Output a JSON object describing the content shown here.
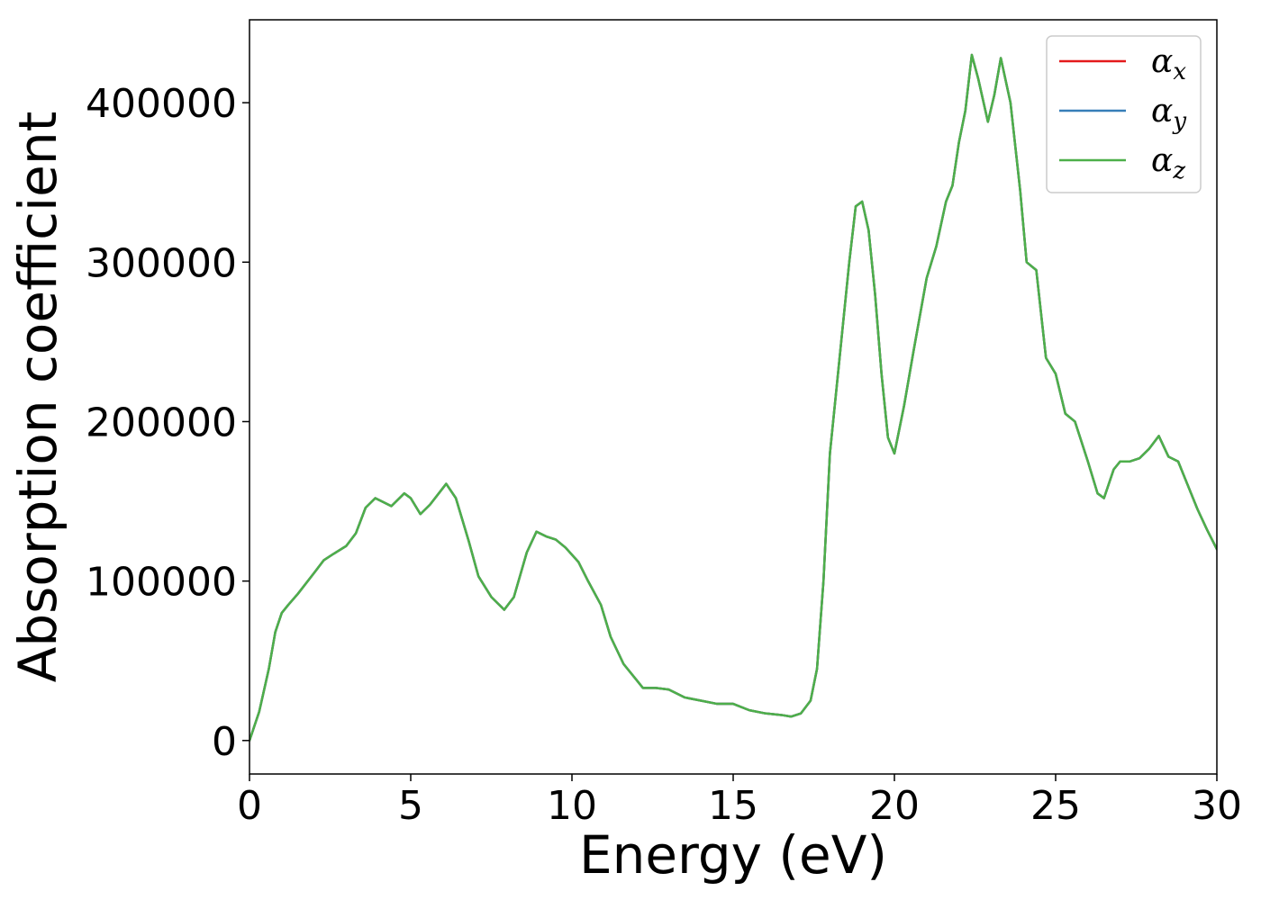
{
  "chart_data": {
    "type": "line",
    "xlabel": "Energy (eV)",
    "ylabel": "Absorption coefficient",
    "xlim": [
      0,
      30
    ],
    "ylim": [
      -21000,
      452000
    ],
    "xticks": [
      0,
      5,
      10,
      15,
      20,
      25,
      30
    ],
    "yticks": [
      0,
      100000,
      200000,
      300000,
      400000
    ],
    "grid": false,
    "legend_position": "top-right",
    "x": [
      0,
      0.3,
      0.6,
      0.8,
      1.0,
      1.2,
      1.5,
      2.0,
      2.3,
      2.6,
      3.0,
      3.3,
      3.6,
      3.9,
      4.1,
      4.4,
      4.8,
      5.0,
      5.3,
      5.6,
      6.1,
      6.4,
      6.8,
      7.1,
      7.5,
      7.9,
      8.2,
      8.6,
      8.9,
      9.2,
      9.5,
      9.8,
      10.2,
      10.5,
      10.9,
      11.2,
      11.6,
      12.0,
      12.2,
      12.6,
      13.0,
      13.5,
      14.0,
      14.5,
      15.0,
      15.5,
      16.0,
      16.5,
      16.8,
      17.1,
      17.4,
      17.6,
      17.8,
      18.0,
      18.3,
      18.6,
      18.8,
      19.0,
      19.2,
      19.4,
      19.6,
      19.8,
      20.0,
      20.3,
      20.6,
      21.0,
      21.3,
      21.6,
      21.8,
      22.0,
      22.2,
      22.4,
      22.6,
      22.9,
      23.1,
      23.3,
      23.6,
      23.9,
      24.1,
      24.4,
      24.7,
      25.0,
      25.3,
      25.6,
      26.0,
      26.3,
      26.5,
      26.8,
      27.0,
      27.3,
      27.6,
      27.9,
      28.2,
      28.5,
      28.8,
      29.1,
      29.4,
      29.7,
      30.0
    ],
    "series": [
      {
        "name": "α_x",
        "color": "#e41a1c",
        "values": [
          0,
          18000,
          45000,
          68000,
          80000,
          85000,
          92000,
          105000,
          113000,
          117000,
          122000,
          130000,
          146000,
          152000,
          150000,
          147000,
          155000,
          152000,
          142000,
          148000,
          161000,
          152000,
          125000,
          103000,
          90000,
          82000,
          90000,
          118000,
          131000,
          128000,
          126000,
          121000,
          112000,
          100000,
          85000,
          65000,
          48000,
          38000,
          33000,
          33000,
          32000,
          27000,
          25000,
          23000,
          23000,
          19000,
          17000,
          16000,
          15000,
          17000,
          25000,
          45000,
          100000,
          180000,
          240000,
          300000,
          335000,
          338000,
          320000,
          280000,
          230000,
          190000,
          180000,
          210000,
          245000,
          290000,
          310000,
          338000,
          348000,
          375000,
          395000,
          430000,
          415000,
          388000,
          405000,
          428000,
          400000,
          345000,
          300000,
          295000,
          240000,
          230000,
          205000,
          200000,
          175000,
          155000,
          152000,
          170000,
          175000,
          175000,
          177000,
          183000,
          191000,
          178000,
          175000,
          160000,
          145000,
          132000,
          120000
        ]
      },
      {
        "name": "α_y",
        "color": "#377eb8",
        "values": [
          0,
          18000,
          45000,
          68000,
          80000,
          85000,
          92000,
          105000,
          113000,
          117000,
          122000,
          130000,
          146000,
          152000,
          150000,
          147000,
          155000,
          152000,
          142000,
          148000,
          161000,
          152000,
          125000,
          103000,
          90000,
          82000,
          90000,
          118000,
          131000,
          128000,
          126000,
          121000,
          112000,
          100000,
          85000,
          65000,
          48000,
          38000,
          33000,
          33000,
          32000,
          27000,
          25000,
          23000,
          23000,
          19000,
          17000,
          16000,
          15000,
          17000,
          25000,
          45000,
          100000,
          180000,
          240000,
          300000,
          335000,
          338000,
          320000,
          280000,
          230000,
          190000,
          180000,
          210000,
          245000,
          290000,
          310000,
          338000,
          348000,
          375000,
          395000,
          430000,
          415000,
          388000,
          405000,
          428000,
          400000,
          345000,
          300000,
          295000,
          240000,
          230000,
          205000,
          200000,
          175000,
          155000,
          152000,
          170000,
          175000,
          175000,
          177000,
          183000,
          191000,
          178000,
          175000,
          160000,
          145000,
          132000,
          120000
        ]
      },
      {
        "name": "α_z",
        "color": "#4daf4a",
        "values": [
          0,
          18000,
          45000,
          68000,
          80000,
          85000,
          92000,
          105000,
          113000,
          117000,
          122000,
          130000,
          146000,
          152000,
          150000,
          147000,
          155000,
          152000,
          142000,
          148000,
          161000,
          152000,
          125000,
          103000,
          90000,
          82000,
          90000,
          118000,
          131000,
          128000,
          126000,
          121000,
          112000,
          100000,
          85000,
          65000,
          48000,
          38000,
          33000,
          33000,
          32000,
          27000,
          25000,
          23000,
          23000,
          19000,
          17000,
          16000,
          15000,
          17000,
          25000,
          45000,
          100000,
          180000,
          240000,
          300000,
          335000,
          338000,
          320000,
          280000,
          230000,
          190000,
          180000,
          210000,
          245000,
          290000,
          310000,
          338000,
          348000,
          375000,
          395000,
          430000,
          415000,
          388000,
          405000,
          428000,
          400000,
          345000,
          300000,
          295000,
          240000,
          230000,
          205000,
          200000,
          175000,
          155000,
          152000,
          170000,
          175000,
          175000,
          177000,
          183000,
          191000,
          178000,
          175000,
          160000,
          145000,
          132000,
          120000
        ]
      }
    ],
    "legend": [
      {
        "symbol": "α",
        "subscript": "x"
      },
      {
        "symbol": "α",
        "subscript": "y"
      },
      {
        "symbol": "α",
        "subscript": "z"
      }
    ]
  }
}
